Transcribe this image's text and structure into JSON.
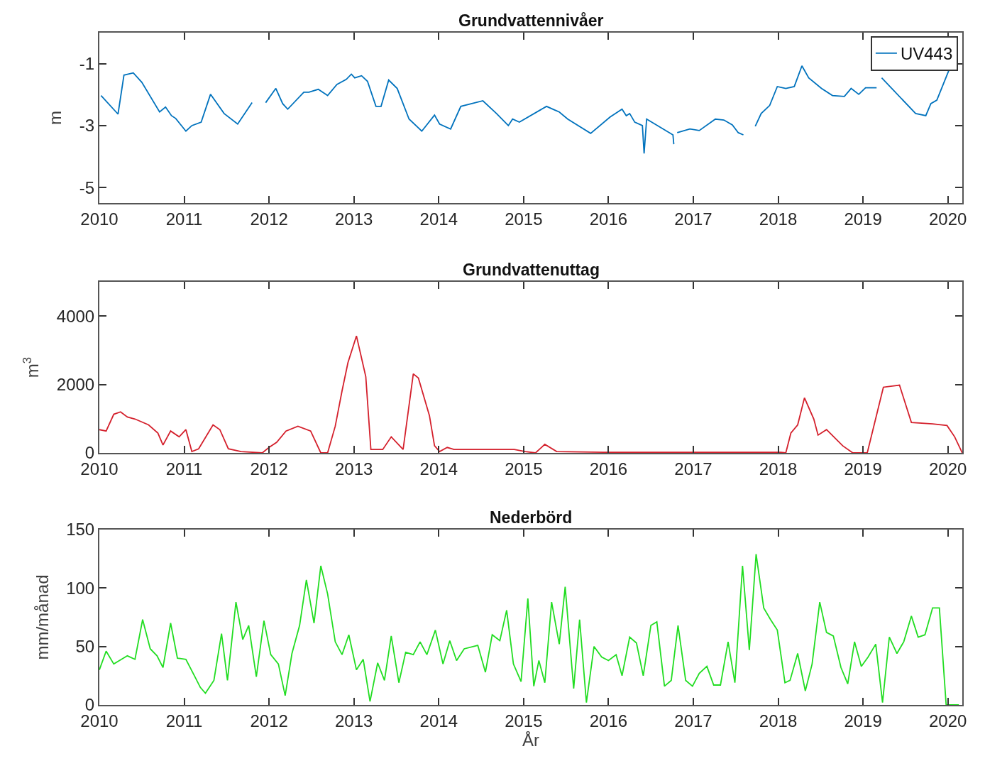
{
  "chart_data": [
    {
      "type": "line",
      "title": "Grundvattennivåer",
      "ylabel": "m",
      "xlim": [
        2010,
        2020.17
      ],
      "xticks": [
        2010,
        2011,
        2012,
        2013,
        2014,
        2015,
        2016,
        2017,
        2018,
        2019,
        2020
      ],
      "ylim": [
        -5.5,
        0
      ],
      "yticks": [
        -5,
        -3,
        -1
      ],
      "legend": "top right",
      "marker": "none",
      "series": [
        {
          "name": "UV443",
          "color": "#0072bd",
          "x": [
            2010.02,
            2010.22,
            2010.29,
            2010.4,
            2010.5,
            2010.71,
            2010.78,
            2010.85,
            2010.9,
            2011.02,
            2011.09,
            2011.2,
            2011.31,
            2011.47,
            2011.63,
            2011.8,
            2011.88,
            2011.96,
            2012.08,
            2012.16,
            2012.22,
            2012.41,
            2012.47,
            2012.58,
            2012.69,
            2012.8,
            2012.91,
            2012.97,
            2013.01,
            2013.09,
            2013.16,
            2013.26,
            2013.32,
            2013.41,
            2013.51,
            2013.65,
            2013.8,
            2013.95,
            2014.01,
            2014.14,
            2014.26,
            2014.52,
            2014.68,
            2014.82,
            2014.87,
            2014.95,
            2015.27,
            2015.36,
            2015.42,
            2015.52,
            2015.79,
            2016.02,
            2016.16,
            2016.21,
            2016.25,
            2016.31,
            2016.4,
            2016.42,
            2016.45,
            2016.76,
            2016.77,
            2016.79,
            2016.81,
            2016.96,
            2017.07,
            2017.26,
            2017.36,
            2017.46,
            2017.53,
            2017.59,
            2017.65,
            2017.73,
            2017.8,
            2017.9,
            2017.99,
            2018.09,
            2018.19,
            2018.28,
            2018.36,
            2018.51,
            2018.64,
            2018.78,
            2018.86,
            2018.95,
            2019.03,
            2019.16,
            2019.19,
            2019.22,
            2019.62,
            2019.74,
            2019.8,
            2019.87,
            2020.01
          ],
          "values": [
            -2.03,
            -2.63,
            -1.37,
            -1.3,
            -1.6,
            -2.56,
            -2.4,
            -2.68,
            -2.77,
            -3.18,
            -3.0,
            -2.89,
            -1.99,
            -2.61,
            -2.95,
            -2.26,
            null,
            -2.26,
            -1.8,
            -2.29,
            -2.47,
            -1.92,
            -1.92,
            -1.83,
            -2.03,
            -1.67,
            -1.51,
            -1.34,
            -1.46,
            -1.39,
            -1.57,
            -2.38,
            -2.38,
            -1.53,
            -1.8,
            -2.79,
            -3.18,
            -2.66,
            -2.95,
            -3.11,
            -2.38,
            -2.2,
            -2.61,
            -3.0,
            -2.79,
            -2.89,
            -2.38,
            -2.49,
            -2.56,
            -2.79,
            -3.25,
            -2.72,
            -2.47,
            -2.68,
            -2.61,
            -2.89,
            -3.0,
            -3.9,
            -2.79,
            -3.3,
            -3.6,
            null,
            -3.23,
            -3.11,
            -3.16,
            -2.79,
            -2.82,
            -2.98,
            -3.23,
            -3.3,
            null,
            -3.02,
            -2.61,
            -2.35,
            -1.74,
            -1.8,
            -1.74,
            -1.07,
            -1.46,
            -1.8,
            -2.03,
            -2.06,
            -1.8,
            -1.99,
            -1.78,
            -1.78,
            null,
            -1.46,
            -2.61,
            -2.68,
            -2.29,
            -2.18,
            -1.23
          ]
        }
      ]
    },
    {
      "type": "line",
      "title": "Grundvattenuttag",
      "ylabel": "m$^{3}$",
      "xlim": [
        2010,
        2020.17
      ],
      "xticks": [
        2010,
        2011,
        2012,
        2013,
        2014,
        2015,
        2016,
        2017,
        2018,
        2019,
        2020
      ],
      "ylim": [
        0,
        5000
      ],
      "yticks": [
        0,
        2000,
        4000
      ],
      "marker": "none",
      "series": [
        {
          "color": "#d4202c",
          "x": [
            2010.0,
            2010.08,
            2010.17,
            2010.25,
            2010.33,
            2010.42,
            2010.58,
            2010.69,
            2010.75,
            2010.84,
            2010.94,
            2011.02,
            2011.09,
            2011.17,
            2011.34,
            2011.42,
            2011.52,
            2011.67,
            2011.92,
            2012.0,
            2012.09,
            2012.2,
            2012.34,
            2012.49,
            2012.61,
            2012.69,
            2012.78,
            2012.86,
            2012.93,
            2013.03,
            2013.14,
            2013.2,
            2013.34,
            2013.44,
            2013.58,
            2013.7,
            2013.76,
            2013.89,
            2013.95,
            2014.01,
            2014.1,
            2014.18,
            2014.89,
            2015.02,
            2015.14,
            2015.25,
            2015.39,
            2015.94,
            2018.03,
            2018.09,
            2018.15,
            2018.23,
            2018.31,
            2018.42,
            2018.47,
            2018.57,
            2018.76,
            2018.88,
            2019.05,
            2019.24,
            2019.43,
            2019.57,
            2019.82,
            2019.99,
            2020.08,
            2020.17
          ],
          "values": [
            680,
            640,
            1130,
            1200,
            1050,
            990,
            820,
            580,
            230,
            640,
            470,
            680,
            40,
            120,
            820,
            680,
            120,
            40,
            0,
            160,
            310,
            640,
            780,
            640,
            0,
            0,
            780,
            1810,
            2640,
            3420,
            2230,
            100,
            100,
            470,
            100,
            2310,
            2190,
            1090,
            210,
            40,
            160,
            100,
            100,
            40,
            0,
            250,
            40,
            20,
            20,
            0,
            580,
            820,
            1610,
            990,
            520,
            680,
            210,
            0,
            0,
            1920,
            1980,
            890,
            850,
            800,
            470,
            0
          ]
        }
      ]
    },
    {
      "type": "line",
      "title": "Nederbörd",
      "ylabel": "mm/månad",
      "xlabel": "År",
      "xlim": [
        2010,
        2020.17
      ],
      "xticks": [
        2010,
        2011,
        2012,
        2013,
        2014,
        2015,
        2016,
        2017,
        2018,
        2019,
        2020
      ],
      "ylim": [
        0,
        150
      ],
      "yticks": [
        0,
        50,
        100,
        150
      ],
      "marker": "none",
      "series": [
        {
          "color": "#22dd22",
          "x": [
            2010.0,
            2010.08,
            2010.17,
            2010.33,
            2010.42,
            2010.51,
            2010.6,
            2010.68,
            2010.75,
            2010.84,
            2010.92,
            2011.02,
            2011.12,
            2011.19,
            2011.25,
            2011.35,
            2011.44,
            2011.51,
            2011.61,
            2011.69,
            2011.76,
            2011.85,
            2011.94,
            2012.02,
            2012.11,
            2012.19,
            2012.27,
            2012.36,
            2012.44,
            2012.53,
            2012.61,
            2012.69,
            2012.78,
            2012.86,
            2012.94,
            2013.03,
            2013.11,
            2013.19,
            2013.28,
            2013.36,
            2013.44,
            2013.53,
            2013.61,
            2013.7,
            2013.78,
            2013.86,
            2013.96,
            2014.05,
            2014.13,
            2014.21,
            2014.3,
            2014.46,
            2014.55,
            2014.63,
            2014.72,
            2014.8,
            2014.88,
            2014.97,
            2015.05,
            2015.12,
            2015.18,
            2015.25,
            2015.33,
            2015.42,
            2015.49,
            2015.59,
            2015.66,
            2015.74,
            2015.83,
            2015.92,
            2016.0,
            2016.09,
            2016.16,
            2016.25,
            2016.33,
            2016.41,
            2016.5,
            2016.57,
            2016.66,
            2016.74,
            2016.82,
            2016.91,
            2016.99,
            2017.07,
            2017.16,
            2017.24,
            2017.32,
            2017.41,
            2017.49,
            2017.58,
            2017.66,
            2017.74,
            2017.83,
            2017.91,
            2017.99,
            2018.08,
            2018.14,
            2018.23,
            2018.32,
            2018.4,
            2018.49,
            2018.57,
            2018.65,
            2018.74,
            2018.82,
            2018.9,
            2018.98,
            2019.06,
            2019.15,
            2019.23,
            2019.31,
            2019.4,
            2019.48,
            2019.57,
            2019.65,
            2019.73,
            2019.82,
            2019.9,
            2019.98,
            2020.13
          ],
          "values": [
            30,
            46,
            35,
            42,
            39,
            73,
            48,
            42,
            32,
            70,
            40,
            39,
            25,
            15,
            10,
            21,
            61,
            21,
            88,
            56,
            68,
            24,
            72,
            43,
            35,
            8,
            44,
            68,
            107,
            70,
            119,
            95,
            54,
            43,
            60,
            30,
            39,
            3,
            36,
            21,
            59,
            19,
            45,
            43,
            54,
            43,
            64,
            35,
            55,
            38,
            48,
            51,
            28,
            60,
            55,
            81,
            35,
            20,
            91,
            16,
            38,
            19,
            88,
            52,
            101,
            14,
            73,
            2,
            50,
            41,
            38,
            43,
            25,
            58,
            53,
            25,
            68,
            71,
            16,
            21,
            68,
            21,
            16,
            27,
            33,
            17,
            17,
            54,
            19,
            119,
            47,
            129,
            83,
            73,
            64,
            19,
            21,
            44,
            12,
            35,
            88,
            62,
            59,
            32,
            18,
            54,
            33,
            41,
            52,
            2,
            58,
            44,
            54,
            76,
            58,
            60,
            83,
            83,
            0,
            0
          ]
        }
      ]
    }
  ]
}
